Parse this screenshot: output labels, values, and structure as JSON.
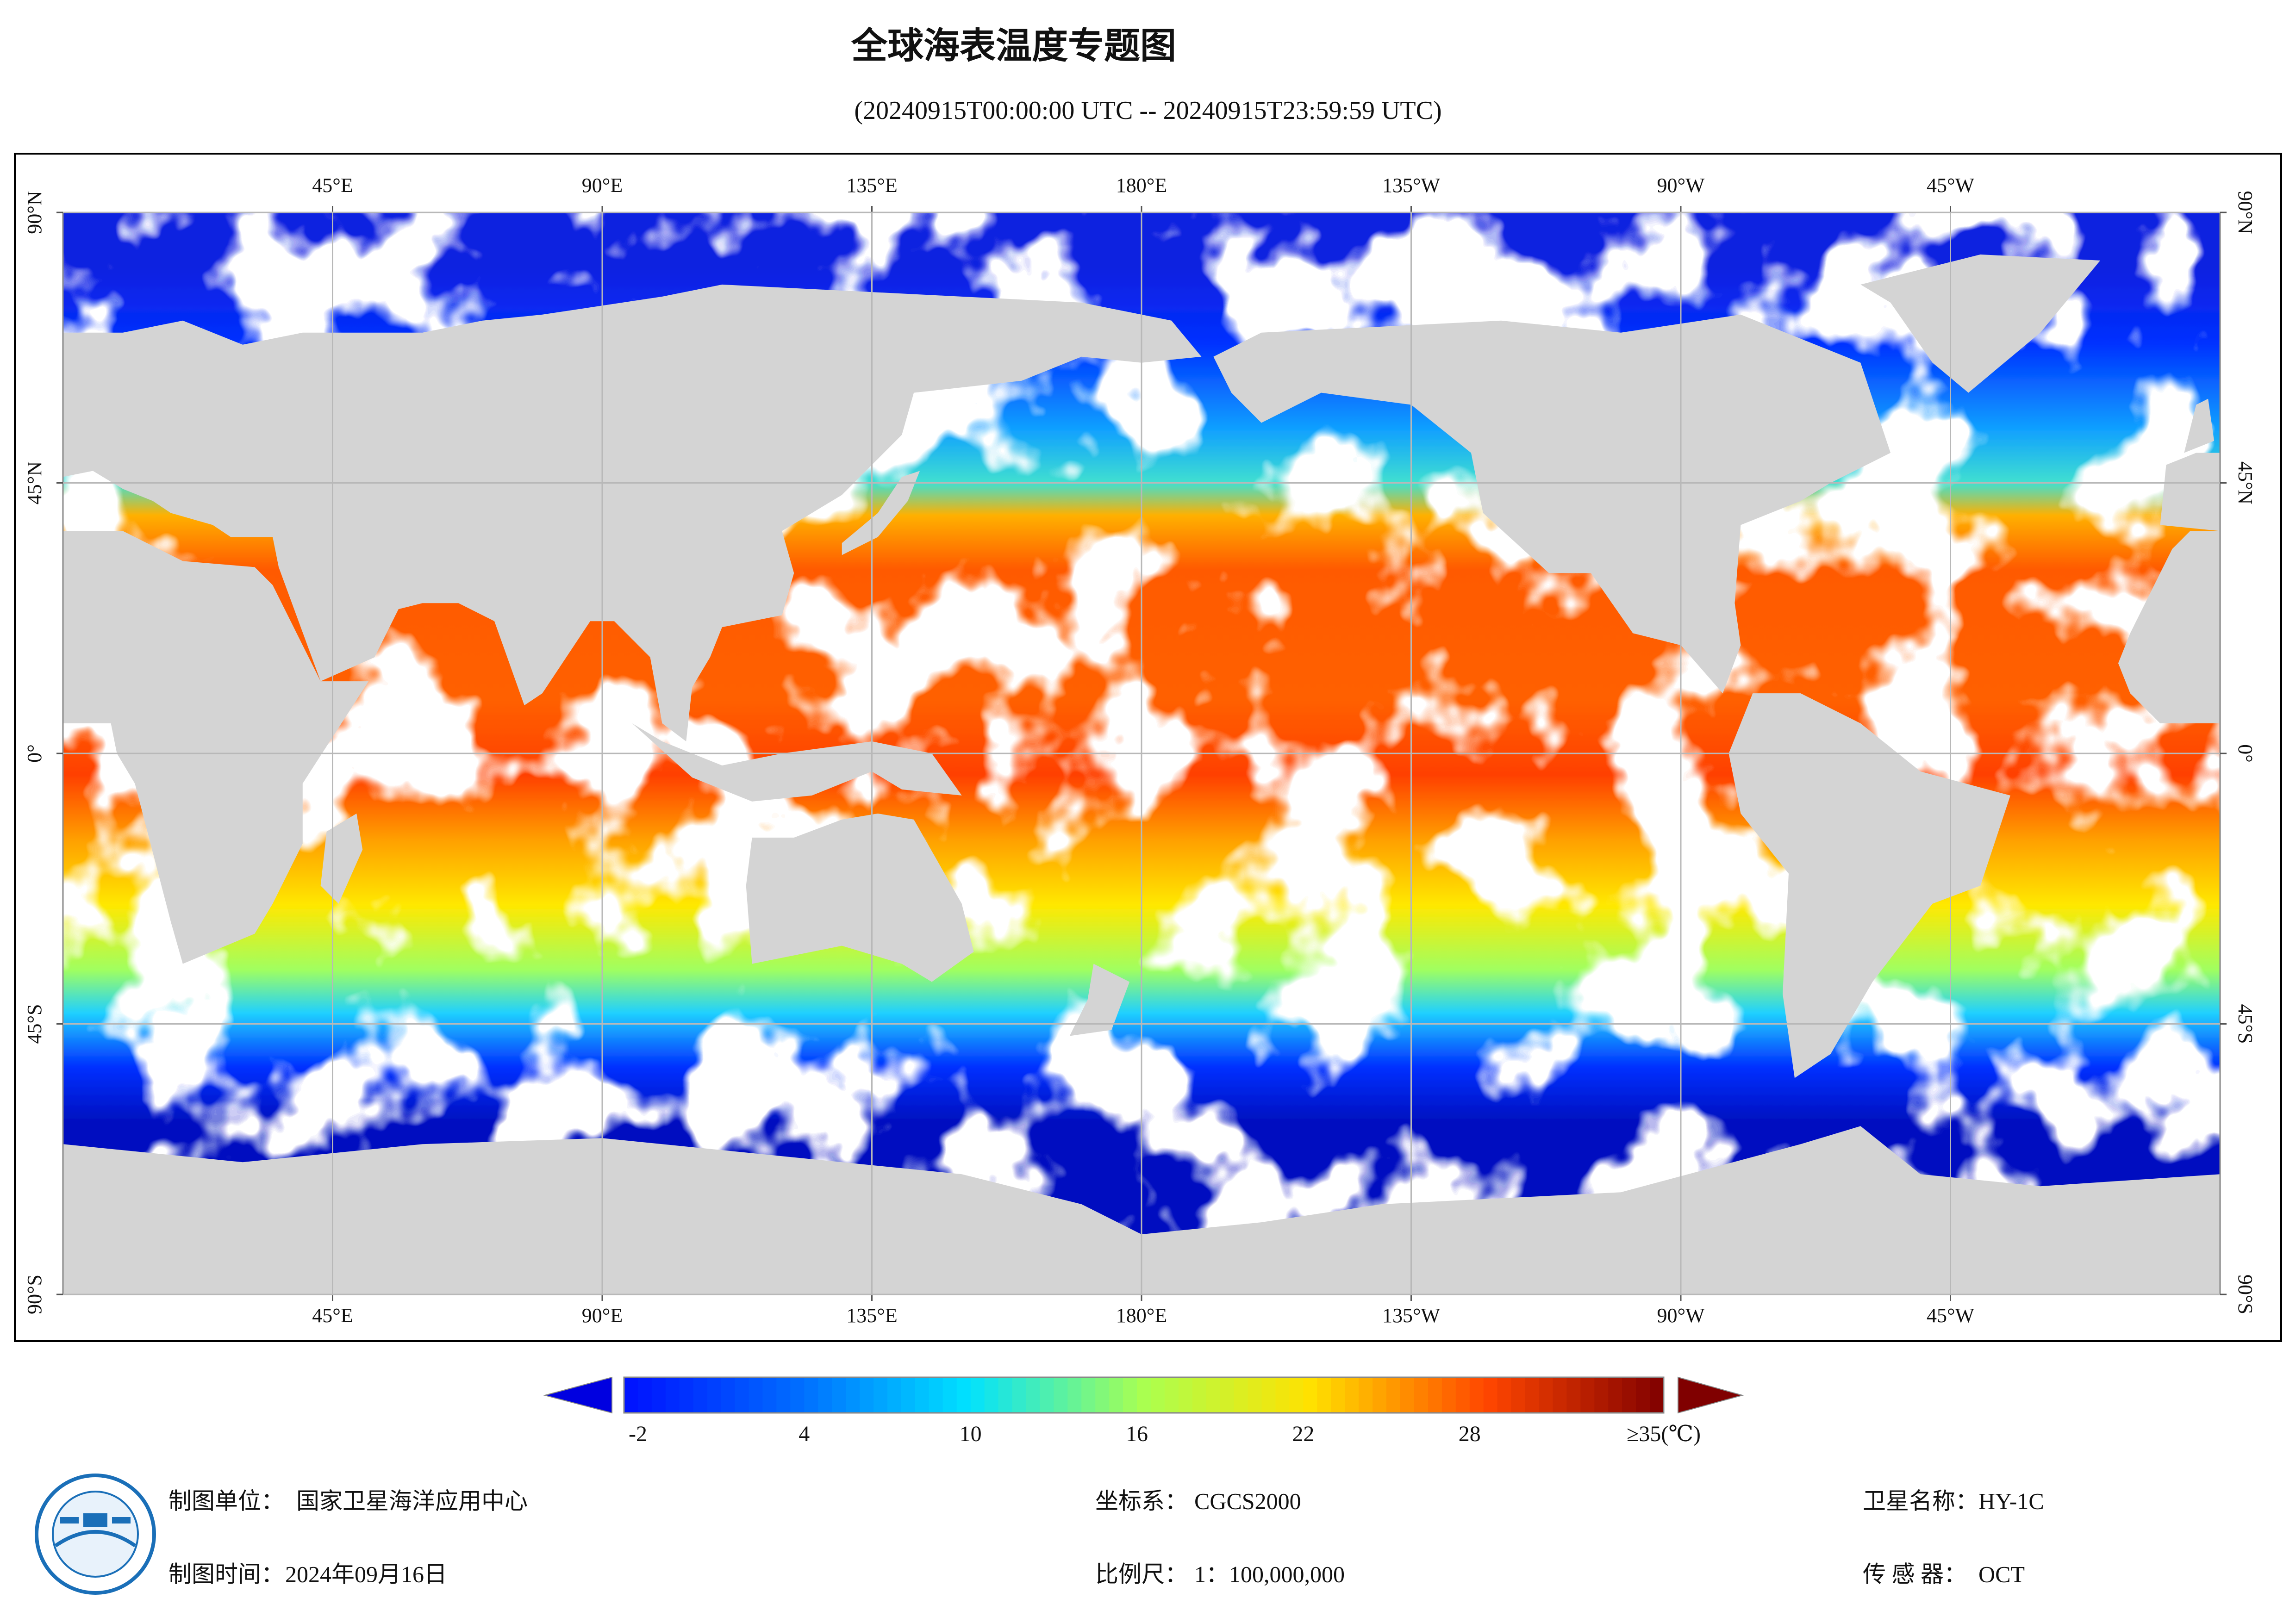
{
  "title": "全球海表温度专题图",
  "subtitle": "(20240915T00:00:00 UTC -- 20240915T23:59:59 UTC)",
  "map": {
    "lonlim": [
      0,
      360
    ],
    "latlim": [
      -90,
      90
    ],
    "lon_ticks": [
      {
        "value": 45,
        "label": "45°E"
      },
      {
        "value": 90,
        "label": "90°E"
      },
      {
        "value": 135,
        "label": "135°E"
      },
      {
        "value": 180,
        "label": "180°E"
      },
      {
        "value": 225,
        "label": "135°W"
      },
      {
        "value": 270,
        "label": "90°W"
      },
      {
        "value": 315,
        "label": "45°W"
      }
    ],
    "lat_ticks": [
      {
        "value": 90,
        "label": "90°N"
      },
      {
        "value": 45,
        "label": "45°N"
      },
      {
        "value": 0,
        "label": "0°"
      },
      {
        "value": -45,
        "label": "45°S"
      },
      {
        "value": -90,
        "label": "90°S"
      }
    ]
  },
  "colorbar": {
    "clim": [
      -2.5,
      35
    ],
    "ticks": [
      -2,
      4,
      10,
      16,
      22,
      28,
      {
        "value": 35,
        "label": "≥35(℃)"
      }
    ]
  },
  "footer": {
    "unit": {
      "label": "制图单位：",
      "value": "国家卫星海洋应用中心"
    },
    "time": {
      "label": "制图时间：",
      "value": "2024年09月16日"
    },
    "crs": {
      "label": "坐标系：",
      "value": "CGCS2000"
    },
    "scale": {
      "label": "比例尺：",
      "value": "1：100,000,000"
    },
    "satellite": {
      "label": "卫星名称：",
      "value": "HY-1C"
    },
    "sensor": {
      "label": "传 感 器：",
      "value": "OCT"
    }
  }
}
